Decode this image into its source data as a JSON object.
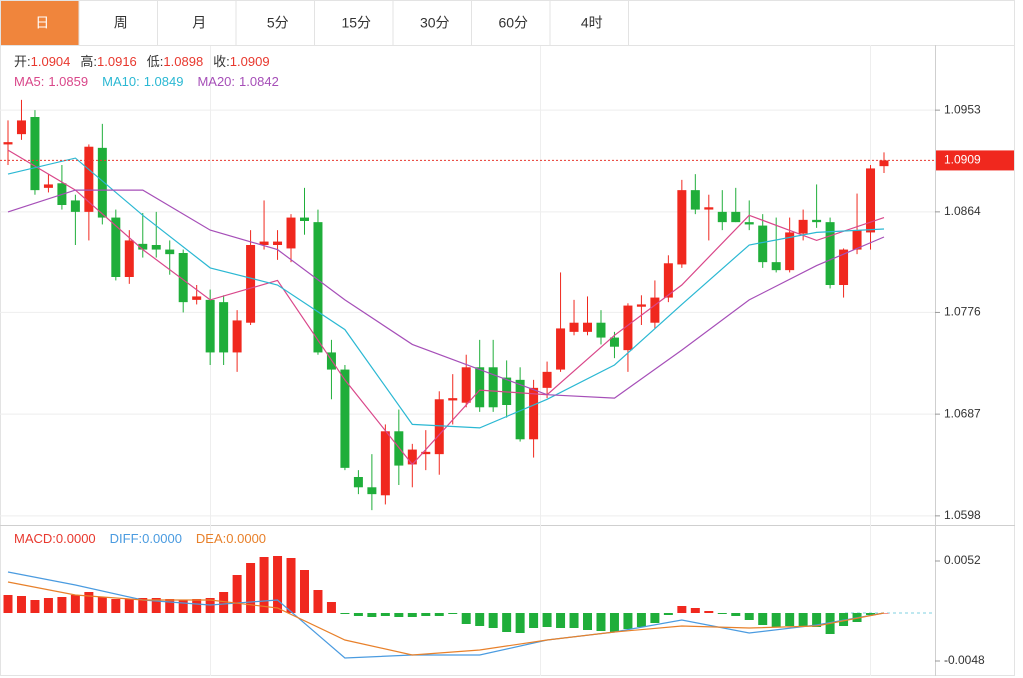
{
  "tabs": {
    "items": [
      "日",
      "周",
      "月",
      "5分",
      "15分",
      "30分",
      "60分",
      "4时"
    ],
    "active": 0
  },
  "chart_data": [
    {
      "type": "candlestick",
      "up_color": "#f0281e",
      "down_color": "#1fae3a",
      "header": [
        {
          "label": "开:",
          "value": 1.0904
        },
        {
          "label": "高:",
          "value": 1.0916
        },
        {
          "label": "低:",
          "value": 1.0898
        },
        {
          "label": "收:",
          "value": 1.0909
        }
      ],
      "open": [
        1.0923,
        1.0932,
        1.0947,
        1.0885,
        1.0889,
        1.0874,
        1.0864,
        1.092,
        1.0859,
        1.0807,
        1.0836,
        1.0835,
        1.0831,
        1.0828,
        1.0787,
        1.0787,
        1.0785,
        1.0741,
        1.0767,
        1.0835,
        1.0835,
        1.0832,
        1.0859,
        1.0855,
        1.0741,
        1.0726,
        1.0632,
        1.0623,
        1.0616,
        1.0672,
        1.0643,
        1.0652,
        1.0652,
        1.0699,
        1.0697,
        1.0728,
        1.0728,
        1.0719,
        1.0717,
        1.0665,
        1.071,
        1.0726,
        1.0759,
        1.0759,
        1.0767,
        1.0754,
        1.0743,
        1.0781,
        1.0767,
        1.0789,
        1.0818,
        1.0883,
        1.0866,
        1.0864,
        1.0864,
        1.0855,
        1.0852,
        1.082,
        1.0813,
        1.0845,
        1.0857,
        1.0855,
        1.08,
        1.0831,
        1.0846,
        1.0904
      ],
      "high": [
        1.0944,
        1.0962,
        1.0953,
        1.0897,
        1.0905,
        1.0879,
        1.0923,
        1.0941,
        1.0866,
        1.0848,
        1.0863,
        1.0864,
        1.0839,
        1.0831,
        1.08,
        1.0796,
        1.0791,
        1.0778,
        1.0848,
        1.0874,
        1.0848,
        1.0862,
        1.0885,
        1.0866,
        1.0752,
        1.073,
        1.0638,
        1.0652,
        1.0678,
        1.0691,
        1.0661,
        1.0673,
        1.0707,
        1.0722,
        1.0739,
        1.0752,
        1.0752,
        1.0734,
        1.0728,
        1.0717,
        1.0733,
        1.0811,
        1.0787,
        1.079,
        1.0778,
        1.0759,
        1.0784,
        1.0791,
        1.0804,
        1.0826,
        1.0892,
        1.0897,
        1.0879,
        1.0883,
        1.0885,
        1.0874,
        1.0862,
        1.0859,
        1.0859,
        1.0866,
        1.0888,
        1.0859,
        1.0832,
        1.088,
        1.0905,
        1.0916
      ],
      "low": [
        1.0905,
        1.0927,
        1.0879,
        1.0881,
        1.0866,
        1.0835,
        1.0839,
        1.0853,
        1.0804,
        1.0801,
        1.0824,
        1.0824,
        1.0809,
        1.0776,
        1.0783,
        1.073,
        1.073,
        1.0724,
        1.0765,
        1.0831,
        1.0822,
        1.082,
        1.0844,
        1.0739,
        1.07,
        1.0638,
        1.0617,
        1.0603,
        1.0608,
        1.0625,
        1.0623,
        1.0638,
        1.0634,
        1.0678,
        1.0693,
        1.0689,
        1.0689,
        1.0684,
        1.0663,
        1.0649,
        1.0701,
        1.0724,
        1.0756,
        1.0756,
        1.0748,
        1.0736,
        1.0724,
        1.0765,
        1.0762,
        1.0785,
        1.0815,
        1.0862,
        1.0839,
        1.0848,
        1.0855,
        1.0848,
        1.0815,
        1.0811,
        1.0811,
        1.0839,
        1.085,
        1.0797,
        1.0789,
        1.0827,
        1.0831,
        1.0898
      ],
      "close": [
        1.0925,
        1.0944,
        1.0883,
        1.0888,
        1.087,
        1.0864,
        1.0921,
        1.0859,
        1.0807,
        1.0839,
        1.0831,
        1.0831,
        1.0827,
        1.0785,
        1.079,
        1.0741,
        1.0741,
        1.0769,
        1.0835,
        1.0838,
        1.0838,
        1.0859,
        1.0856,
        1.0741,
        1.0726,
        1.064,
        1.0623,
        1.0617,
        1.0672,
        1.0642,
        1.0656,
        1.0654,
        1.07,
        1.0701,
        1.0728,
        1.0693,
        1.0693,
        1.0695,
        1.0665,
        1.071,
        1.0724,
        1.0762,
        1.0767,
        1.0767,
        1.0754,
        1.0746,
        1.0782,
        1.0783,
        1.0789,
        1.0819,
        1.0883,
        1.0866,
        1.0868,
        1.0855,
        1.0855,
        1.0853,
        1.082,
        1.0813,
        1.0846,
        1.0857,
        1.0855,
        1.08,
        1.0831,
        1.0848,
        1.0902,
        1.0909
      ],
      "series": [
        {
          "label": "MA5:",
          "value": 1.0859,
          "color": "#d9478a",
          "x": [
            0,
            5,
            10,
            15,
            20,
            25,
            30,
            35,
            40,
            45,
            50,
            55,
            60,
            65
          ],
          "values": [
            1.0918,
            1.0883,
            1.0831,
            1.0787,
            1.0804,
            1.0717,
            1.0643,
            1.0708,
            1.0704,
            1.0756,
            1.08,
            1.0861,
            1.0839,
            1.0859
          ]
        },
        {
          "label": "MA10:",
          "value": 1.0849,
          "color": "#2bb8d3",
          "x": [
            0,
            5,
            10,
            15,
            20,
            25,
            30,
            35,
            40,
            45,
            50,
            55,
            60,
            65
          ],
          "values": [
            1.0897,
            1.0911,
            1.0861,
            1.0815,
            1.08,
            1.0761,
            1.0678,
            1.0675,
            1.07,
            1.073,
            1.0783,
            1.0835,
            1.0846,
            1.0849
          ]
        },
        {
          "label": "MA20:",
          "value": 1.0842,
          "color": "#a64fb8",
          "x": [
            0,
            5,
            10,
            15,
            20,
            25,
            30,
            35,
            40,
            45,
            50,
            55,
            60,
            65
          ],
          "values": [
            1.0864,
            1.0883,
            1.0883,
            1.0848,
            1.0831,
            1.0787,
            1.0748,
            1.0726,
            1.0704,
            1.0701,
            1.0743,
            1.0787,
            1.0817,
            1.0842
          ]
        }
      ],
      "ylim": [
        1.059,
        1.101
      ],
      "yticks": [
        1.0953,
        1.0864,
        1.0776,
        1.0687,
        1.0598
      ],
      "grid": true,
      "last_price_line": true
    },
    {
      "type": "bar",
      "label": "MACD:",
      "value": 0,
      "value_label": "0.0000",
      "color": "#e8382e",
      "up_color": "#f0281e",
      "down_color": "#1fae3a",
      "values": [
        0.0018,
        0.0017,
        0.0013,
        0.0015,
        0.0016,
        0.0018,
        0.0021,
        0.0016,
        0.0014,
        0.0014,
        0.0015,
        0.0015,
        0.0014,
        0.0013,
        0.0014,
        0.0015,
        0.0021,
        0.0038,
        0.005,
        0.0056,
        0.0057,
        0.0055,
        0.0043,
        0.0023,
        0.0011,
        -0.0001,
        -0.0003,
        -0.0004,
        -0.0003,
        -0.0004,
        -0.0004,
        -0.0003,
        -0.0003,
        -0.0001,
        -0.0011,
        -0.0013,
        -0.0015,
        -0.0019,
        -0.002,
        -0.0015,
        -0.0014,
        -0.0015,
        -0.0015,
        -0.0017,
        -0.0018,
        -0.0019,
        -0.0016,
        -0.0014,
        -0.001,
        -0.0002,
        0.0007,
        0.0005,
        0.0002,
        -0.0001,
        -0.0003,
        -0.0007,
        -0.0012,
        -0.0014,
        -0.0013,
        -0.0013,
        -0.0014,
        -0.0021,
        -0.0013,
        -0.0009,
        -0.0002,
        0
      ],
      "series": [
        {
          "label": "DIFF:",
          "value": 0,
          "value_label": "0.0000",
          "color": "#4a9be0",
          "x": [
            0,
            5,
            10,
            15,
            20,
            25,
            30,
            35,
            40,
            45,
            50,
            55,
            60,
            65
          ],
          "values": [
            0.0041,
            0.0028,
            0.0013,
            0.0008,
            0.0013,
            -0.0045,
            -0.0042,
            -0.0042,
            -0.0027,
            -0.0019,
            -0.0007,
            -0.002,
            -0.0012,
            0
          ]
        },
        {
          "label": "DEA:",
          "value": 0,
          "value_label": "0.0000",
          "color": "#e8802a",
          "x": [
            0,
            5,
            10,
            15,
            20,
            25,
            30,
            35,
            40,
            45,
            50,
            55,
            60,
            65
          ],
          "values": [
            0.0031,
            0.0018,
            0.0013,
            0.0013,
            0.0005,
            -0.0027,
            -0.0042,
            -0.0037,
            -0.0027,
            -0.0019,
            -0.0013,
            -0.0015,
            -0.0013,
            0
          ]
        }
      ],
      "ylim": [
        -0.0062,
        0.0085
      ],
      "yticks": [
        0.0052,
        -0.0048
      ]
    }
  ]
}
